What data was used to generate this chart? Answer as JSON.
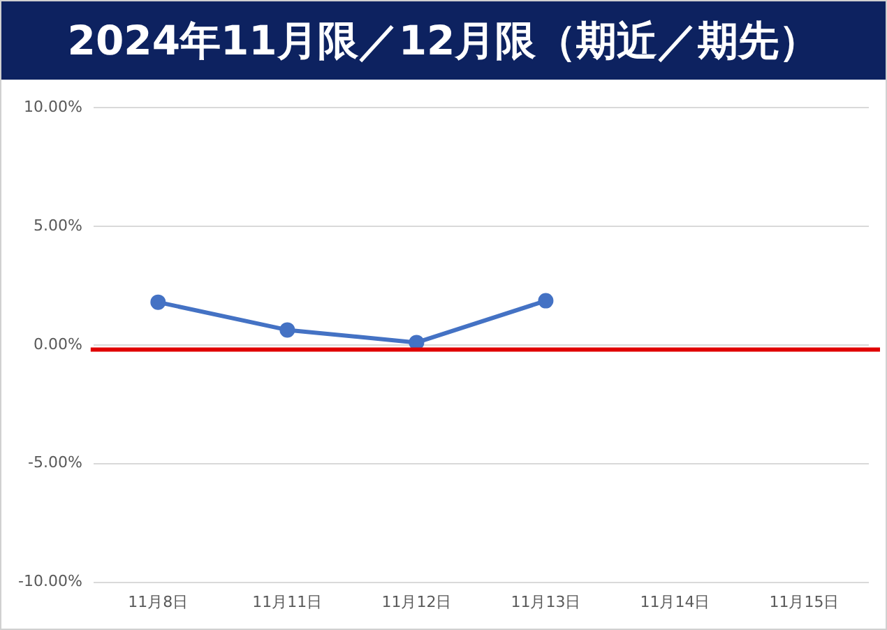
{
  "chart_data": {
    "type": "line",
    "title": "2024年11月限／12月限（期近／期先）",
    "categories": [
      "11月8日",
      "11月11日",
      "11月12日",
      "11月13日",
      "11月14日",
      "11月15日"
    ],
    "series": [
      {
        "color": "#4472c4",
        "values": [
          1.8,
          0.63,
          0.1,
          1.86,
          null,
          null
        ]
      }
    ],
    "ylim": [
      -10,
      10
    ],
    "yticks": [
      {
        "value": -10,
        "label": "-10.00%"
      },
      {
        "value": -5,
        "label": "-5.00%"
      },
      {
        "value": 0,
        "label": "0.00%"
      },
      {
        "value": 5,
        "label": "5.00%"
      },
      {
        "value": 10,
        "label": "10.00%"
      }
    ],
    "ref_lines": [
      {
        "axis": "y",
        "value": -0.2,
        "color": "#e00000"
      }
    ],
    "grid": "y",
    "legend": false,
    "marker": "circle",
    "line_style": "solid"
  }
}
